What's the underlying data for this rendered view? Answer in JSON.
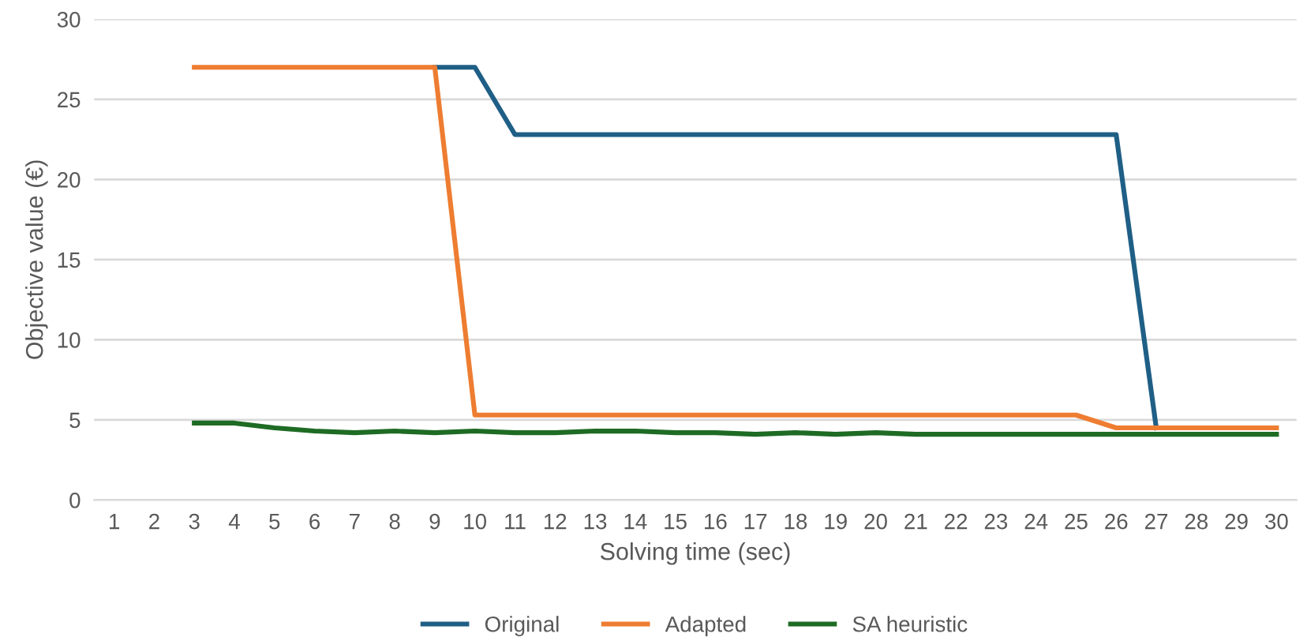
{
  "chart_data": {
    "type": "line",
    "xlabel": "Solving time (sec)",
    "ylabel": "Objective value (€)",
    "categories": [
      "1",
      "2",
      "3",
      "4",
      "5",
      "6",
      "7",
      "8",
      "9",
      "10",
      "11",
      "12",
      "13",
      "14",
      "15",
      "16",
      "17",
      "18",
      "19",
      "20",
      "21",
      "22",
      "23",
      "24",
      "25",
      "26",
      "27",
      "28",
      "29",
      "30"
    ],
    "series": [
      {
        "name": "Original",
        "color": "#1f5f86",
        "values": [
          null,
          null,
          null,
          null,
          null,
          null,
          null,
          null,
          27,
          27,
          22.8,
          22.8,
          22.8,
          22.8,
          22.8,
          22.8,
          22.8,
          22.8,
          22.8,
          22.8,
          22.8,
          22.8,
          22.8,
          22.8,
          22.8,
          22.8,
          4.5,
          null,
          null,
          null
        ]
      },
      {
        "name": "Adapted",
        "color": "#ee7d31",
        "values": [
          null,
          null,
          27,
          27,
          27,
          27,
          27,
          27,
          27,
          5.3,
          5.3,
          5.3,
          5.3,
          5.3,
          5.3,
          5.3,
          5.3,
          5.3,
          5.3,
          5.3,
          5.3,
          5.3,
          5.3,
          5.3,
          5.3,
          4.5,
          4.5,
          4.5,
          4.5,
          4.5
        ]
      },
      {
        "name": "SA heuristic",
        "color": "#1e6b24",
        "values": [
          null,
          null,
          4.8,
          4.8,
          4.5,
          4.3,
          4.2,
          4.3,
          4.2,
          4.3,
          4.2,
          4.2,
          4.3,
          4.3,
          4.2,
          4.2,
          4.1,
          4.2,
          4.1,
          4.2,
          4.1,
          4.1,
          4.1,
          4.1,
          4.1,
          4.1,
          4.1,
          4.1,
          4.1,
          4.1
        ]
      }
    ],
    "ylim": [
      0,
      30
    ],
    "yticks": [
      0,
      5,
      10,
      15,
      20,
      25,
      30
    ],
    "grid": "y",
    "legend": "bottom",
    "marker": "none",
    "line_style": "solid"
  }
}
